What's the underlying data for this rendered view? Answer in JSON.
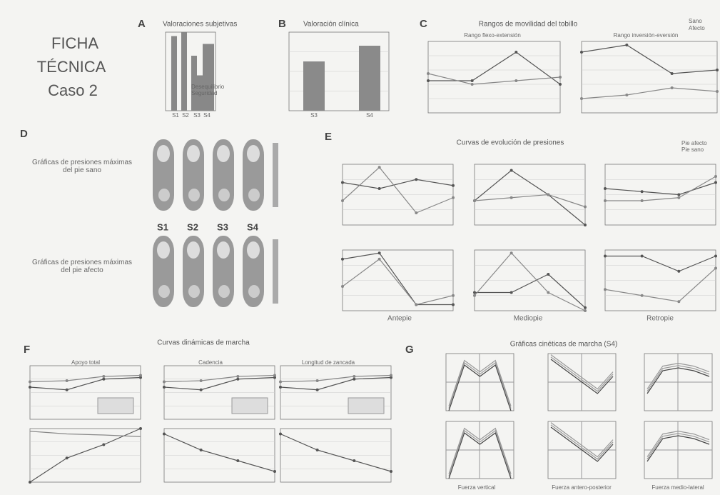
{
  "title": {
    "line1": "FICHA",
    "line2": "TÉCNICA",
    "line3": "Caso 2"
  },
  "panels": {
    "A": {
      "letter": "A",
      "title": "Valoraciones subjetivas",
      "legend": [
        "Desequilibrio",
        "Seguridad"
      ],
      "categories": [
        "S1",
        "S2",
        "S3",
        "S4"
      ]
    },
    "B": {
      "letter": "B",
      "title": "Valoración clínica",
      "categories": [
        "S3",
        "S4"
      ]
    },
    "C": {
      "letter": "C",
      "title": "Rangos de movilidad del tobillo",
      "subtitles": [
        "Rango flexo-extensión",
        "Rango inversión-eversión"
      ],
      "legend": [
        "Sano",
        "Afecto"
      ]
    },
    "D": {
      "letter": "D",
      "labels": [
        "Gráficas de presiones máximas del pie sano",
        "Gráficas de presiones máximas del pie afecto"
      ],
      "sessions": [
        "S1",
        "S2",
        "S3",
        "S4"
      ]
    },
    "E": {
      "letter": "E",
      "title": "Curvas de evolución de presiones",
      "legend": [
        "Pie afecto",
        "Pie sano"
      ],
      "xlabels": [
        "Antepie",
        "Mediopie",
        "Retropie"
      ]
    },
    "F": {
      "letter": "F",
      "title": "Curvas dinámicas de marcha",
      "subtitles": [
        "Apoyo total",
        "Cadencia",
        "Longitud de zancada"
      ]
    },
    "G": {
      "letter": "G",
      "title": "Gráficas cinéticas de marcha (S4)",
      "xlabels": [
        "Fuerza vertical",
        "Fuerza antero-posterior",
        "Fuerza medio-lateral"
      ]
    }
  }
}
